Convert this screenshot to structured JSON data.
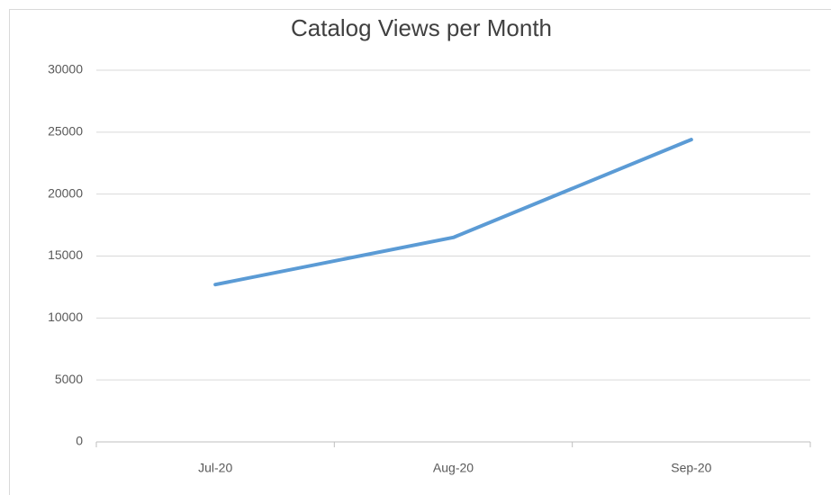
{
  "chart_data": {
    "type": "line",
    "title": "Catalog Views per Month",
    "categories": [
      "Jul-20",
      "Aug-20",
      "Sep-20"
    ],
    "series": [
      {
        "name": "Catalog Views",
        "color": "#5b9bd5",
        "values": [
          12700,
          16500,
          24400
        ]
      }
    ],
    "ylim": [
      0,
      30000
    ],
    "yticks": [
      0,
      5000,
      10000,
      15000,
      20000,
      25000,
      30000
    ],
    "grid": true
  }
}
